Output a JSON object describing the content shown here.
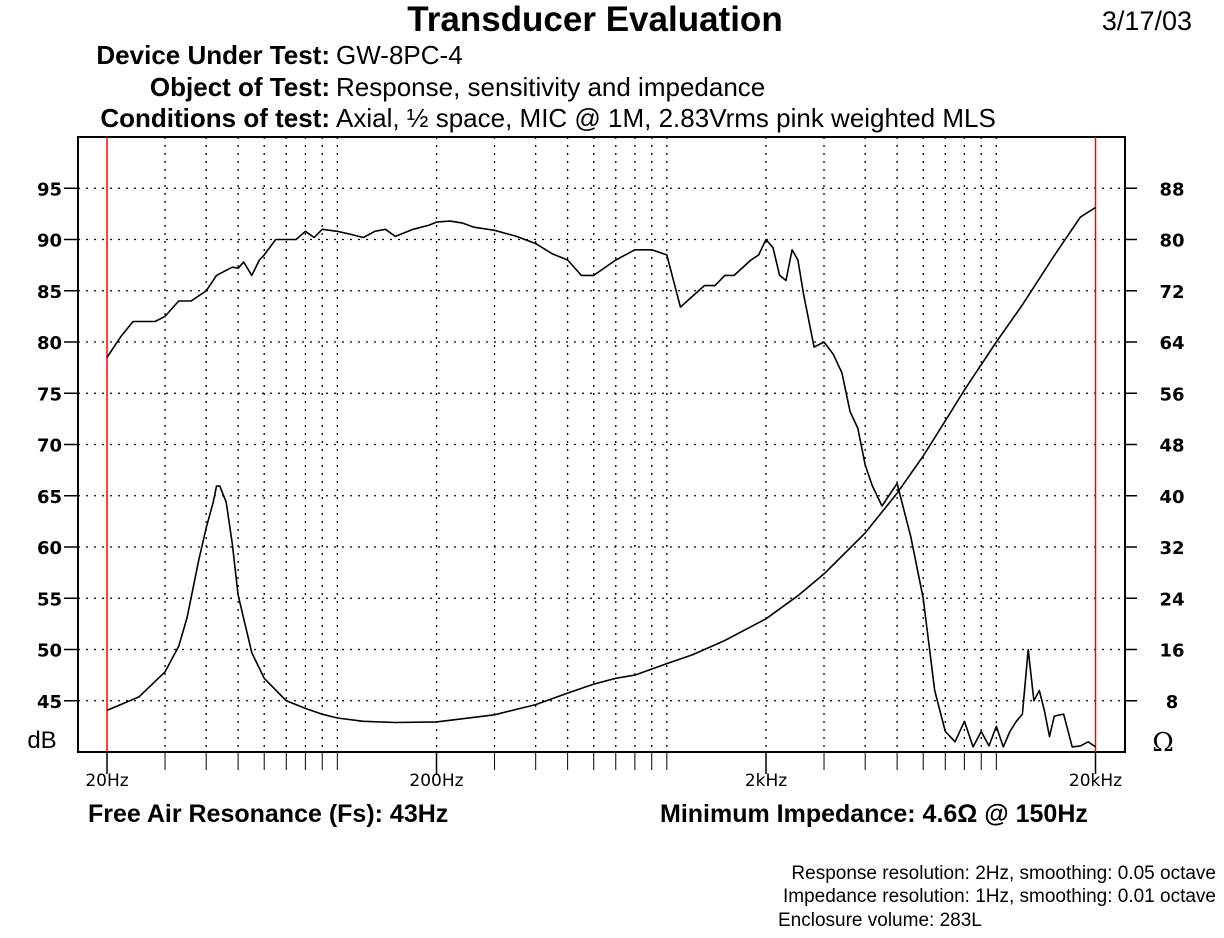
{
  "header": {
    "title": "Transducer Evaluation",
    "date": "3/17/03",
    "rows": [
      {
        "label": "Device Under Test:",
        "value": "GW-8PC-4"
      },
      {
        "label": "Object of Test:",
        "value": "Response, sensitivity and impedance"
      },
      {
        "label": "Conditions of test:",
        "value": "Axial, ½ space, MIC @ 1M, 2.83Vrms pink weighted MLS"
      }
    ]
  },
  "footer": {
    "fs": "Free Air Resonance (Fs): 43Hz",
    "zmin": "Minimum Impedance: 4.6Ω @ 150Hz",
    "notes": [
      "Response resolution: 2Hz, smoothing: 0.05 octave",
      "Impedance resolution: 1Hz, smoothing: 0.01 octave",
      "Enclosure volume: 283L"
    ]
  },
  "chart_data": {
    "type": "line",
    "x_scale": "log",
    "xlim": [
      20,
      20000
    ],
    "x_ticks": [
      {
        "value": 20,
        "label": "20Hz"
      },
      {
        "value": 200,
        "label": "200Hz"
      },
      {
        "value": 2000,
        "label": "2kHz"
      },
      {
        "value": 20000,
        "label": "20kHz"
      }
    ],
    "left_axis": {
      "unit": "dB",
      "ylim": [
        40,
        100
      ],
      "ticks": [
        45,
        50,
        55,
        60,
        65,
        70,
        75,
        80,
        85,
        90,
        95
      ]
    },
    "right_axis": {
      "unit": "Ω",
      "ylim": [
        0,
        96
      ],
      "ticks": [
        8,
        16,
        24,
        32,
        40,
        48,
        56,
        64,
        72,
        80,
        88
      ]
    },
    "grid": true,
    "marker_lines": {
      "color": "#ff0000",
      "x": [
        20,
        20000
      ]
    },
    "series": [
      {
        "axis": "left",
        "x": [
          20,
          22,
          24,
          26,
          28,
          30,
          33,
          36,
          40,
          43,
          46,
          48,
          50,
          52,
          55,
          58,
          60,
          65,
          70,
          75,
          80,
          85,
          90,
          100,
          110,
          120,
          130,
          140,
          150,
          170,
          190,
          200,
          220,
          240,
          260,
          300,
          350,
          400,
          450,
          500,
          550,
          600,
          700,
          800,
          900,
          1000,
          1100,
          1200,
          1300,
          1400,
          1500,
          1600,
          1800,
          1900,
          2000,
          2100,
          2200,
          2300,
          2400,
          2500,
          2600,
          2800,
          3000,
          3200,
          3400,
          3600,
          3800,
          4000,
          4200,
          4500,
          5000,
          5500,
          6000,
          6500,
          7000,
          7500,
          8000,
          8500,
          9000,
          9500,
          10000,
          10500,
          11000,
          11500,
          12000,
          12500,
          13000,
          13500,
          14000,
          14500,
          15000,
          16000,
          17000,
          18000,
          19000,
          20000
        ],
        "y": [
          78.5,
          80.5,
          82,
          82,
          82,
          82.5,
          84,
          84,
          85,
          86.5,
          87,
          87.3,
          87.2,
          87.8,
          86.5,
          88,
          88.5,
          90,
          90,
          90,
          90.8,
          90.2,
          91,
          90.8,
          90.5,
          90.2,
          90.8,
          91,
          90.3,
          91,
          91.4,
          91.7,
          91.8,
          91.6,
          91.2,
          90.9,
          90.3,
          89.6,
          88.6,
          88,
          86.5,
          86.5,
          88,
          89,
          89,
          88.5,
          83.4,
          84.5,
          85.5,
          85.5,
          86.5,
          86.5,
          88,
          88.5,
          90,
          89.2,
          86.5,
          86,
          89,
          88,
          84.7,
          79.5,
          80,
          78.8,
          77,
          73.2,
          71.6,
          68,
          66,
          64,
          66.2,
          61,
          55,
          46,
          42,
          41,
          43,
          40.5,
          42,
          40.6,
          42.5,
          40.5,
          42,
          43,
          43.7,
          50,
          45,
          46,
          44,
          41.5,
          43.5,
          43.7,
          40.5,
          40.6,
          41,
          40.5
        ]
      },
      {
        "axis": "right",
        "x": [
          20,
          25,
          30,
          33,
          35,
          38,
          40,
          42,
          43,
          44,
          46,
          48,
          50,
          55,
          60,
          70,
          80,
          90,
          100,
          120,
          150,
          200,
          300,
          400,
          500,
          600,
          700,
          800,
          1000,
          1200,
          1500,
          2000,
          2500,
          3000,
          4000,
          5000,
          6000,
          7000,
          8000,
          10000,
          12000,
          15000,
          18000,
          20000
        ],
        "y": [
          6.5,
          8.6,
          12.5,
          16.5,
          21,
          30,
          35,
          39,
          41.5,
          41.5,
          39,
          32.5,
          24.5,
          15.5,
          11.5,
          8,
          6.8,
          5.9,
          5.3,
          4.8,
          4.6,
          4.7,
          5.8,
          7.4,
          9.2,
          10.6,
          11.5,
          12,
          13.8,
          15.2,
          17.4,
          20.8,
          24.4,
          27.8,
          34.2,
          40.4,
          46.2,
          51.7,
          56.5,
          64,
          69.8,
          77.5,
          83.5,
          85
        ]
      }
    ]
  }
}
